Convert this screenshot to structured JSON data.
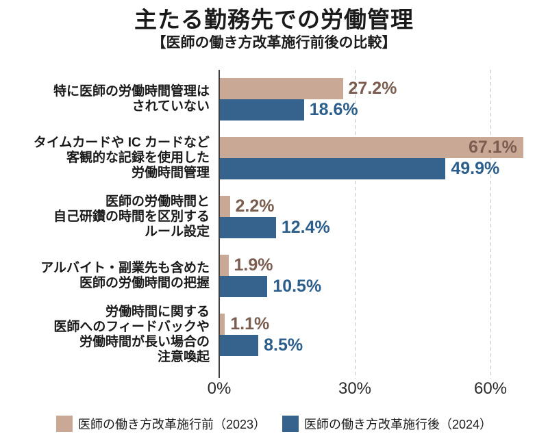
{
  "title": "主たる勤務先での労働管理",
  "subtitle": "【医師の働き方改革施行前後の比較】",
  "colors": {
    "before_bar": "#caa896",
    "after_bar": "#36628e",
    "before_text": "#7b5d50",
    "after_text": "#2c5e8c",
    "axis": "#3f3f3f",
    "grid": "#c3c3c3"
  },
  "legend": {
    "before_label": "医師の働き方改革施行前（2023）",
    "after_label": "医師の働き方改革施行後（2024）"
  },
  "chart_data": {
    "type": "bar",
    "orientation": "horizontal",
    "title": "主たる勤務先での労働管理",
    "subtitle": "【医師の働き方改革施行前後の比較】",
    "categories": [
      [
        "特に医師の労働時間管理は",
        "されていない"
      ],
      [
        "タイムカードや IC カードなど",
        "客観的な記録を使用した",
        "労働時間管理"
      ],
      [
        "医師の労働時間と",
        "自己研鑽の時間を区別する",
        "ルール設定"
      ],
      [
        "アルバイト・副業先も含めた",
        "医師の労働時間の把握"
      ],
      [
        "労働時間に関する",
        "医師へのフィードバックや",
        "労働時間が長い場合の",
        "注意喚起"
      ]
    ],
    "series": [
      {
        "name": "医師の働き方改革施行前（2023）",
        "values": [
          27.2,
          67.1,
          2.2,
          1.9,
          1.1
        ]
      },
      {
        "name": "医師の働き方改革施行後（2024）",
        "values": [
          18.6,
          49.9,
          12.4,
          10.5,
          8.5
        ]
      }
    ],
    "value_suffix": "%",
    "xlim": [
      0,
      68
    ],
    "x_ticks": [
      0,
      30,
      60
    ],
    "x_tick_labels": [
      "0%",
      "30%",
      "60%"
    ],
    "grid": "dashed-vertical",
    "legend_position": "bottom"
  }
}
